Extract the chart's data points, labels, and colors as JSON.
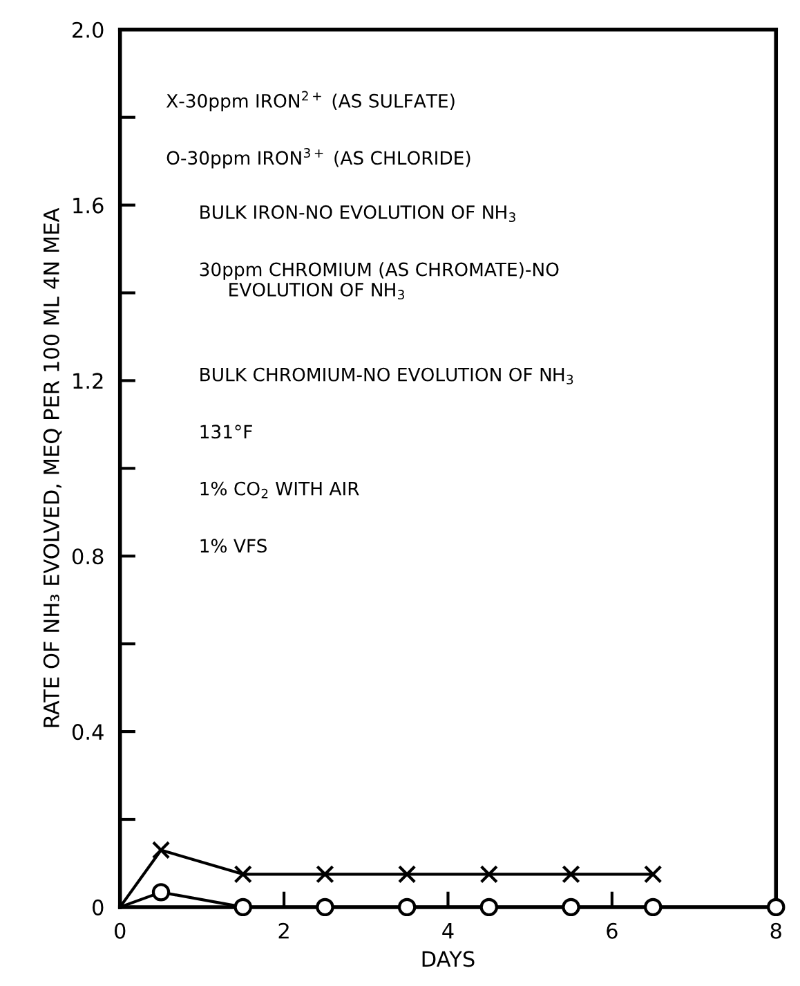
{
  "chart_data": {
    "type": "line",
    "xlabel": "DAYS",
    "ylabel": "RATE OF NH₃ EVOLVED, MEQ PER 100 ML 4N MEA",
    "xlim": [
      0,
      8
    ],
    "ylim": [
      0,
      2.0
    ],
    "xticks": [
      0,
      2,
      4,
      6,
      8
    ],
    "yticks": [
      0,
      {
        "value": 0.2,
        "label": null
      },
      0.4,
      {
        "value": 0.6,
        "label": null
      },
      0.8,
      {
        "value": 1.0,
        "label": null
      },
      1.2,
      {
        "value": 1.4,
        "label": null
      },
      1.6,
      {
        "value": 1.8,
        "label": null
      },
      {
        "value": 2.0,
        "label": "2.0"
      }
    ],
    "grid": false,
    "legend": false,
    "line_style": "solid",
    "series": [
      {
        "color": "#000000",
        "marker": "cross",
        "x": [
          0,
          0.5,
          1.5,
          2.5,
          3.5,
          4.5,
          5.5,
          6.5
        ],
        "values": [
          0,
          0.13,
          0.075,
          0.075,
          0.075,
          0.075,
          0.075,
          0.075
        ]
      },
      {
        "color": "#000000",
        "marker": "circle",
        "x": [
          0,
          0.5,
          1.5,
          2.5,
          3.5,
          4.5,
          5.5,
          6.5,
          8
        ],
        "values": [
          0,
          0.034,
          0,
          0,
          0,
          0,
          0,
          0,
          0
        ]
      }
    ],
    "annotations": [
      "X-30ppm IRON$^{2+}$ (AS SULFATE)",
      "O-30ppm IRON$^{3+}$ (AS CHLORIDE)",
      "BULK IRON-NO EVOLUTION OF NH$_{3}$",
      "30ppm CHROMIUM (AS CHROMATE)-NO\n     EVOLUTION OF NH$_{3}$",
      "BULK CHROMIUM-NO EVOLUTION OF NH$_{3}$",
      "131°F",
      "1% CO$_{2}$ WITH AIR",
      "1% VFS"
    ]
  }
}
